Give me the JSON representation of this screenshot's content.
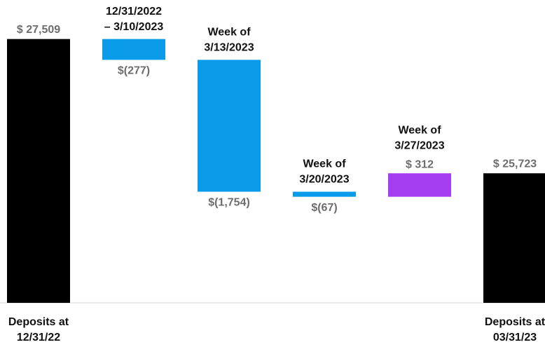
{
  "chart_data": {
    "type": "waterfall",
    "categories": [
      [
        "Deposits at",
        "12/31/22"
      ],
      [
        "12/31/2022",
        "– 3/10/2023"
      ],
      [
        "Week of",
        "3/13/2023"
      ],
      [
        "Week of",
        "3/20/2023"
      ],
      [
        "Week of",
        "3/27/2023"
      ],
      [
        "Deposits at",
        "03/31/23"
      ]
    ],
    "measure": [
      "absolute",
      "relative",
      "relative",
      "relative",
      "relative",
      "absolute"
    ],
    "values": [
      27509,
      -277,
      -1754,
      -67,
      312,
      25723
    ],
    "value_labels": [
      "$ 27,509",
      "$(277)",
      "$(1,754)",
      "$(67)",
      "$ 312",
      "$ 25,723"
    ],
    "colors": [
      "#000000",
      "#0a9be8",
      "#0a9be8",
      "#0a9be8",
      "#a53df0",
      "#000000"
    ],
    "ylim": [
      24000,
      28000
    ]
  }
}
